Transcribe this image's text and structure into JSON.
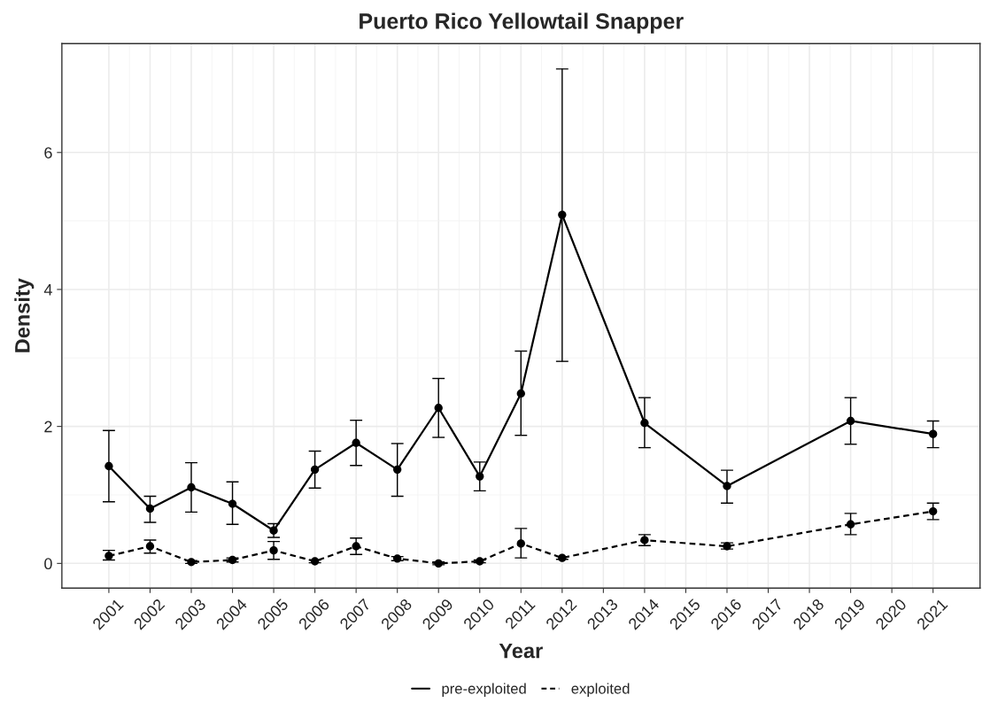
{
  "chart_data": {
    "type": "line",
    "title": "Puerto Rico Yellowtail Snapper",
    "xlabel": "Year",
    "ylabel": "Density",
    "x": [
      2001,
      2002,
      2003,
      2004,
      2005,
      2006,
      2007,
      2008,
      2009,
      2010,
      2011,
      2012,
      2014,
      2016,
      2019,
      2021
    ],
    "series": [
      {
        "name": "pre-exploited",
        "color": "#000000",
        "line_style": "solid",
        "values": [
          1.42,
          0.8,
          1.11,
          0.87,
          0.48,
          1.37,
          1.76,
          1.37,
          2.27,
          1.27,
          2.48,
          5.09,
          2.05,
          1.13,
          2.08,
          1.89
        ],
        "errors": [
          [
            0.9,
            1.94
          ],
          [
            0.6,
            0.98
          ],
          [
            0.75,
            1.47
          ],
          [
            0.57,
            1.19
          ],
          [
            0.38,
            0.58
          ],
          [
            1.1,
            1.64
          ],
          [
            1.43,
            2.09
          ],
          [
            0.98,
            1.75
          ],
          [
            1.84,
            2.7
          ],
          [
            1.06,
            1.48
          ],
          [
            1.87,
            3.1
          ],
          [
            2.95,
            7.22
          ],
          [
            1.69,
            2.42
          ],
          [
            0.88,
            1.36
          ],
          [
            1.74,
            2.42
          ],
          [
            1.69,
            2.08
          ]
        ]
      },
      {
        "name": "exploited",
        "color": "#000000",
        "line_style": "dashed",
        "values": [
          0.11,
          0.25,
          0.02,
          0.05,
          0.19,
          0.03,
          0.25,
          0.07,
          0.0,
          0.03,
          0.29,
          0.08,
          0.34,
          0.25,
          0.57,
          0.76
        ],
        "errors": [
          [
            0.05,
            0.19
          ],
          [
            0.15,
            0.34
          ],
          [
            0.0,
            0.04
          ],
          [
            0.02,
            0.08
          ],
          [
            0.06,
            0.32
          ],
          [
            0.01,
            0.05
          ],
          [
            0.13,
            0.37
          ],
          [
            0.04,
            0.1
          ],
          [
            -0.02,
            0.02
          ],
          [
            0.01,
            0.05
          ],
          [
            0.08,
            0.51
          ],
          [
            0.06,
            0.1
          ],
          [
            0.26,
            0.42
          ],
          [
            0.21,
            0.3
          ],
          [
            0.42,
            0.73
          ],
          [
            0.64,
            0.88
          ]
        ]
      }
    ],
    "xlim": [
      1999.86,
      2022.14
    ],
    "ylim": [
      -0.36,
      7.59
    ],
    "xticks": [
      2001,
      2002,
      2003,
      2004,
      2005,
      2006,
      2007,
      2008,
      2009,
      2010,
      2011,
      2012,
      2013,
      2014,
      2015,
      2016,
      2017,
      2018,
      2019,
      2020,
      2021
    ],
    "yticks": [
      0,
      2,
      4,
      6
    ],
    "grid": true,
    "legend": "bottom",
    "marker": "circle"
  }
}
